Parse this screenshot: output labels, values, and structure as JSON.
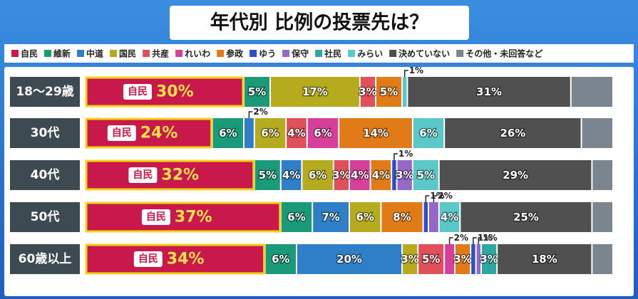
{
  "chart_data": {
    "type": "stacked-bar-horizontal",
    "title": "年代別 比例の投票先は？",
    "categories": [
      "18〜29歳",
      "30代",
      "40代",
      "50代",
      "60歳以上"
    ],
    "xlim": [
      0,
      100
    ],
    "series": [
      {
        "name": "自民",
        "color": "#c8194a",
        "values": [
          30,
          24,
          32,
          37,
          34
        ],
        "value_labels": [
          "30%",
          "24%",
          "32%",
          "37%",
          "34%"
        ]
      },
      {
        "name": "維新",
        "color": "#1a9a78",
        "values": [
          5,
          6,
          5,
          6,
          6
        ],
        "value_labels": [
          "5%",
          "6%",
          "5%",
          "6%",
          "6%"
        ]
      },
      {
        "name": "中道",
        "color": "#2f7fc8",
        "values": [
          null,
          2,
          4,
          7,
          20
        ],
        "value_labels": [
          null,
          "2%",
          "4%",
          "7%",
          "20%"
        ]
      },
      {
        "name": "国民",
        "color": "#b6aa1e",
        "values": [
          17,
          6,
          6,
          6,
          3
        ],
        "value_labels": [
          "17%",
          "6%",
          "6%",
          "6%",
          "3%"
        ]
      },
      {
        "name": "共産",
        "color": "#e0505a",
        "values": [
          3,
          4,
          3,
          null,
          5
        ],
        "value_labels": [
          "3%",
          "4%",
          "3%",
          null,
          "5%"
        ]
      },
      {
        "name": "れいわ",
        "color": "#d63f9a",
        "values": [
          null,
          6,
          4,
          null,
          2
        ],
        "value_labels": [
          null,
          "6%",
          "4%",
          null,
          "2%"
        ]
      },
      {
        "name": "参政",
        "color": "#e07b18",
        "values": [
          5,
          14,
          4,
          8,
          3
        ],
        "value_labels": [
          "5%",
          "14%",
          "4%",
          "8%",
          "3%"
        ]
      },
      {
        "name": "ゆう",
        "color": "#2a4fc8",
        "values": [
          null,
          null,
          1,
          1,
          1
        ],
        "value_labels": [
          null,
          null,
          "1%",
          "1%",
          "1%"
        ]
      },
      {
        "name": "保守",
        "color": "#9467c8",
        "values": [
          null,
          null,
          3,
          2,
          1
        ],
        "value_labels": [
          null,
          null,
          "3%",
          "2%",
          "1%"
        ]
      },
      {
        "name": "社民",
        "color": "#2ea7a0",
        "values": [
          null,
          null,
          null,
          null,
          3
        ],
        "value_labels": [
          null,
          null,
          null,
          null,
          "3%"
        ]
      },
      {
        "name": "みらい",
        "color": "#5ac8c8",
        "values": [
          1,
          6,
          5,
          4,
          null
        ],
        "value_labels": [
          "1%",
          "6%",
          "5%",
          "4%",
          null
        ]
      },
      {
        "name": "決めていない",
        "color": "#505050",
        "values": [
          31,
          26,
          29,
          25,
          18
        ],
        "value_labels": [
          "31%",
          "26%",
          "29%",
          "25%",
          "18%"
        ]
      },
      {
        "name": "その他・未回答など",
        "color": "#7a8590",
        "values": [
          8,
          6,
          4,
          4,
          4
        ],
        "value_labels": [
          null,
          null,
          null,
          null,
          null
        ]
      }
    ]
  }
}
